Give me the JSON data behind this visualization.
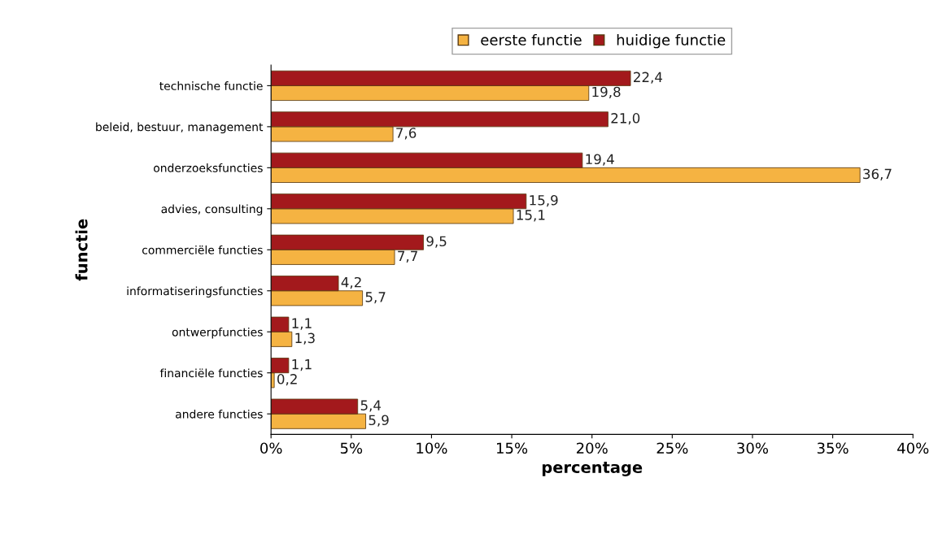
{
  "chart_data": {
    "type": "bar",
    "orientation": "horizontal",
    "xlabel": "percentage",
    "ylabel": "functie",
    "categories": [
      "technische functie",
      "beleid, bestuur, management",
      "onderzoeksfuncties",
      "advies, consulting",
      "commerciële functies",
      "informatiseringsfuncties",
      "ontwerpfuncties",
      "financiële functies",
      "andere functies"
    ],
    "series": [
      {
        "name": "eerste functie",
        "color": "#f5b342",
        "values": [
          19.8,
          7.6,
          36.7,
          15.1,
          7.7,
          5.7,
          1.3,
          0.2,
          5.9
        ],
        "value_labels": [
          "19,8",
          "7,6",
          "36,7",
          "15,1",
          "7,7",
          "5,7",
          "1,3",
          "0,2",
          "5,9"
        ]
      },
      {
        "name": "huidige functie",
        "color": "#a3191c",
        "values": [
          22.4,
          21.0,
          19.4,
          15.9,
          9.5,
          4.2,
          1.1,
          1.1,
          5.4
        ],
        "value_labels": [
          "22,4",
          "21,0",
          "19,4",
          "15,9",
          "9,5",
          "4,2",
          "1,1",
          "1,1",
          "5,4"
        ]
      }
    ],
    "xlim": [
      0,
      40
    ],
    "xticks": [
      {
        "value": 0,
        "label": "0%"
      },
      {
        "value": 5,
        "label": "5%"
      },
      {
        "value": 10,
        "label": "10%"
      },
      {
        "value": 15,
        "label": "15%"
      },
      {
        "value": 20,
        "label": "20%"
      },
      {
        "value": 25,
        "label": "25%"
      },
      {
        "value": 30,
        "label": "30%"
      },
      {
        "value": 35,
        "label": "35%"
      },
      {
        "value": 40,
        "label": "40%"
      }
    ],
    "legend": "top",
    "grid": false
  }
}
